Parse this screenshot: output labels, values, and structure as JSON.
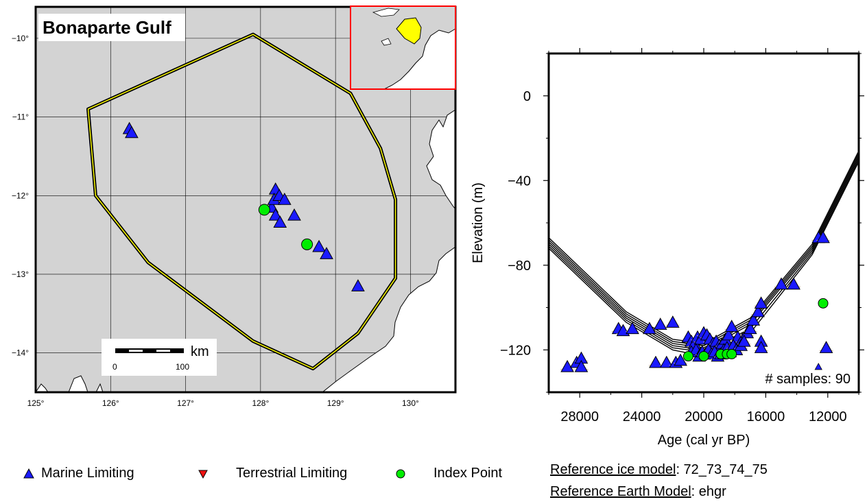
{
  "map": {
    "title": "Bonaparte Gulf",
    "xlim": [
      125,
      130.6
    ],
    "ylim": [
      -14.5,
      -9.6
    ],
    "lon_ticks": [
      {
        "value": 125,
        "label": "125°"
      },
      {
        "value": 126,
        "label": "126°"
      },
      {
        "value": 127,
        "label": "127°"
      },
      {
        "value": 128,
        "label": "128°"
      },
      {
        "value": 129,
        "label": "129°"
      },
      {
        "value": 130,
        "label": "130°"
      }
    ],
    "lat_ticks": [
      {
        "value": -10,
        "label": "−10°"
      },
      {
        "value": -11,
        "label": "−11°"
      },
      {
        "value": -12,
        "label": "−12°"
      },
      {
        "value": -13,
        "label": "−13°"
      },
      {
        "value": -14,
        "label": "−14°"
      }
    ],
    "region_polygon": [
      [
        125.7,
        -10.9
      ],
      [
        127.9,
        -9.95
      ],
      [
        129.2,
        -10.7
      ],
      [
        129.6,
        -11.4
      ],
      [
        129.8,
        -12.05
      ],
      [
        129.8,
        -13.05
      ],
      [
        129.3,
        -13.75
      ],
      [
        128.7,
        -14.2
      ],
      [
        127.9,
        -13.85
      ],
      [
        126.5,
        -12.85
      ],
      [
        125.8,
        -12.0
      ]
    ],
    "scale_bar": {
      "unit": "km",
      "tick_labels": [
        "0",
        "100"
      ]
    },
    "marine_limiting": [
      [
        126.25,
        -11.15
      ],
      [
        126.28,
        -11.2
      ],
      [
        128.15,
        -12.15
      ],
      [
        128.2,
        -11.92
      ],
      [
        128.18,
        -12.05
      ],
      [
        128.25,
        -12.0
      ],
      [
        128.32,
        -12.05
      ],
      [
        128.2,
        -12.25
      ],
      [
        128.26,
        -12.34
      ],
      [
        128.45,
        -12.25
      ],
      [
        128.78,
        -12.65
      ],
      [
        128.88,
        -12.74
      ],
      [
        129.3,
        -13.15
      ]
    ],
    "index_points": [
      [
        128.05,
        -12.18
      ],
      [
        128.62,
        -12.62
      ]
    ],
    "colors": {
      "ocean": "#d3d3d3",
      "land": "#ffffff",
      "polygon_outer": "#000000",
      "polygon_inner": "#ffff00",
      "marine": "#1a1aff",
      "index": "#00ee00",
      "terrestrial": "#ee1111"
    }
  },
  "inset": {
    "outline_color": "#ff0000",
    "shape_color": "#ffff00"
  },
  "chart_data": {
    "type": "scatter",
    "xlabel": "Age (cal yr BP)",
    "ylabel": "Elevation (m)",
    "xlim": [
      30000,
      10000
    ],
    "ylim": [
      -140,
      20
    ],
    "x_ticks": [
      28000,
      24000,
      20000,
      16000,
      12000
    ],
    "y_ticks": [
      0,
      -40,
      -80,
      -120
    ],
    "x_tick_labels": [
      "28000",
      "24000",
      "20000",
      "16000",
      "12000"
    ],
    "y_tick_labels": [
      "0",
      "−40",
      "−80",
      "−120"
    ],
    "annotation": "# samples: 90",
    "model_curves": [
      {
        "offset": 0,
        "x": [
          30000,
          25000,
          22000,
          20000,
          17000,
          13000,
          10000
        ],
        "y": [
          -67,
          -102,
          -115,
          -117,
          -105,
          -70,
          -26
        ]
      },
      {
        "offset": -1,
        "x": [
          30000,
          25000,
          22000,
          20000,
          17000,
          13000,
          10000
        ],
        "y": [
          -68,
          -103,
          -116,
          -118,
          -106,
          -71,
          -27
        ]
      },
      {
        "offset": -2,
        "x": [
          30000,
          25000,
          22000,
          20000,
          17000,
          13000,
          10000
        ],
        "y": [
          -69,
          -104,
          -117,
          -119,
          -107,
          -72,
          -28
        ]
      },
      {
        "offset": -3,
        "x": [
          30000,
          25000,
          22000,
          20000,
          17000,
          13000,
          10000
        ],
        "y": [
          -70,
          -105,
          -118,
          -120,
          -108,
          -73,
          -29
        ]
      },
      {
        "offset": -4,
        "x": [
          30000,
          25000,
          22000,
          20000,
          17000,
          13000,
          10000
        ],
        "y": [
          -71,
          -106,
          -119,
          -121,
          -110,
          -74,
          -30
        ]
      },
      {
        "offset": -5,
        "x": [
          30000,
          25000,
          22000,
          20000,
          17000,
          13000,
          10000
        ],
        "y": [
          -72,
          -107,
          -120,
          -123,
          -112,
          -75,
          -31
        ]
      }
    ],
    "marine_limiting": [
      [
        28800,
        -128
      ],
      [
        28200,
        -126
      ],
      [
        27900,
        -124
      ],
      [
        27900,
        -128
      ],
      [
        25500,
        -110
      ],
      [
        25200,
        -111
      ],
      [
        24600,
        -110
      ],
      [
        23500,
        -110
      ],
      [
        22800,
        -108
      ],
      [
        23100,
        -126
      ],
      [
        22400,
        -126
      ],
      [
        22000,
        -107
      ],
      [
        21800,
        -126
      ],
      [
        21500,
        -125
      ],
      [
        21000,
        -114
      ],
      [
        20800,
        -116
      ],
      [
        20600,
        -117
      ],
      [
        20400,
        -114
      ],
      [
        20200,
        -115
      ],
      [
        20000,
        -112
      ],
      [
        19800,
        -113
      ],
      [
        19600,
        -115
      ],
      [
        19400,
        -117
      ],
      [
        19200,
        -116
      ],
      [
        19000,
        -118
      ],
      [
        18800,
        -117
      ],
      [
        18600,
        -115
      ],
      [
        18400,
        -113
      ],
      [
        18200,
        -109
      ],
      [
        18000,
        -117
      ],
      [
        17800,
        -114
      ],
      [
        17500,
        -115
      ],
      [
        17200,
        -112
      ],
      [
        17000,
        -110
      ],
      [
        16800,
        -106
      ],
      [
        16500,
        -102
      ],
      [
        16300,
        -98
      ],
      [
        20800,
        -121
      ],
      [
        20500,
        -120
      ],
      [
        20300,
        -123
      ],
      [
        20100,
        -121
      ],
      [
        19900,
        -122
      ],
      [
        19700,
        -120
      ],
      [
        19500,
        -122
      ],
      [
        19300,
        -121
      ],
      [
        19100,
        -123
      ],
      [
        18900,
        -122
      ],
      [
        18700,
        -120
      ],
      [
        18500,
        -119
      ],
      [
        18300,
        -121
      ],
      [
        18100,
        -118
      ],
      [
        17900,
        -120
      ],
      [
        17600,
        -118
      ],
      [
        17400,
        -116
      ],
      [
        16300,
        -116
      ],
      [
        16300,
        -119
      ],
      [
        15000,
        -89
      ],
      [
        14200,
        -89
      ],
      [
        12600,
        -67
      ],
      [
        12300,
        -67
      ],
      [
        12100,
        -119
      ]
    ],
    "terrestrial_limiting": [],
    "index_points": [
      [
        21000,
        -123
      ],
      [
        20000,
        -123
      ],
      [
        18900,
        -122
      ],
      [
        18500,
        -122
      ],
      [
        18200,
        -122
      ],
      [
        12300,
        -98
      ]
    ],
    "small_marker": [
      [
        12600,
        -128
      ]
    ]
  },
  "legend": {
    "items": [
      {
        "label": "Marine Limiting",
        "symbol": "triangle-up",
        "color": "#1a1aff"
      },
      {
        "label": "Terrestrial Limiting",
        "symbol": "triangle-down",
        "color": "#ee1111"
      },
      {
        "label": "Index Point",
        "symbol": "circle",
        "color": "#00ee00"
      }
    ]
  },
  "reference": {
    "ice_key": "Reference ice model",
    "ice_value": ": 72_73_74_75",
    "earth_key": "Reference Earth Model",
    "earth_value": ": ehgr"
  }
}
